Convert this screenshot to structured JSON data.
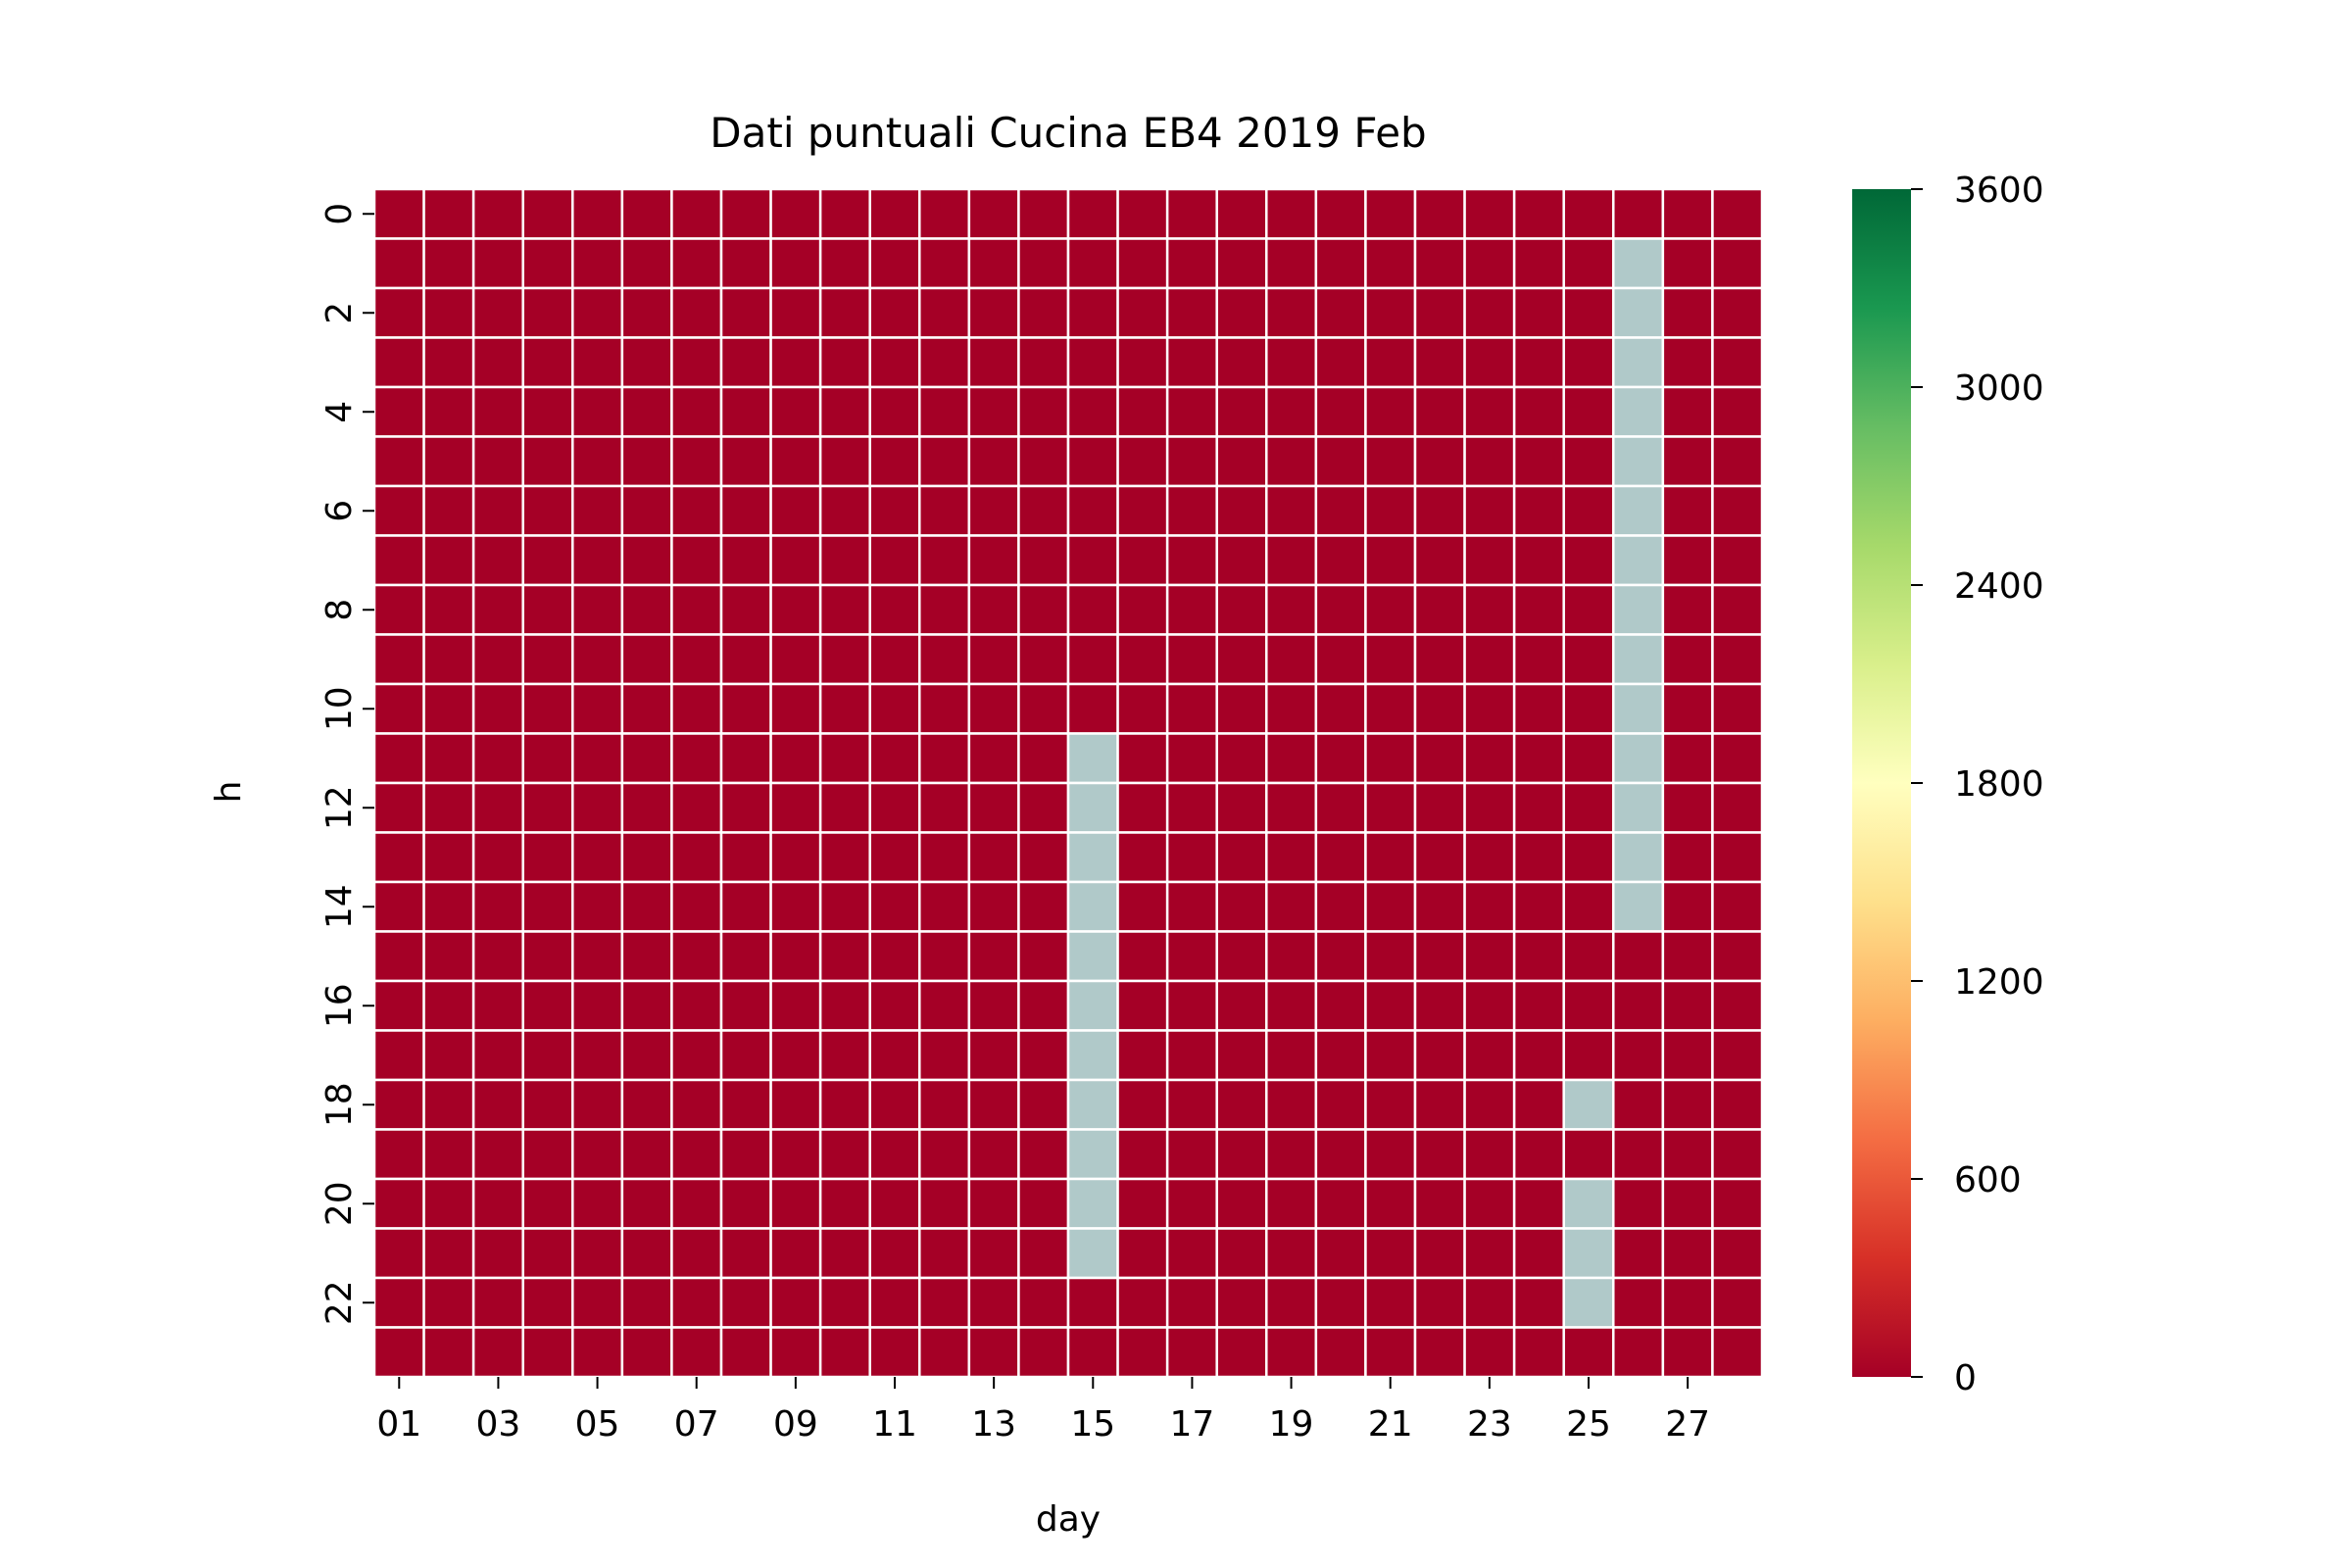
{
  "chart_data": {
    "type": "heatmap",
    "title": "Dati puntuali Cucina EB4 2019 Feb",
    "xlabel": "day",
    "ylabel": "h",
    "x_categories": [
      "01",
      "02",
      "03",
      "04",
      "05",
      "06",
      "07",
      "08",
      "09",
      "10",
      "11",
      "12",
      "13",
      "14",
      "15",
      "16",
      "17",
      "18",
      "19",
      "20",
      "21",
      "22",
      "23",
      "24",
      "25",
      "26",
      "27",
      "28"
    ],
    "y_categories": [
      "0",
      "1",
      "2",
      "3",
      "4",
      "5",
      "6",
      "7",
      "8",
      "9",
      "10",
      "11",
      "12",
      "13",
      "14",
      "15",
      "16",
      "17",
      "18",
      "19",
      "20",
      "21",
      "22",
      "23"
    ],
    "x_tick_labels": [
      "01",
      "03",
      "05",
      "07",
      "09",
      "11",
      "13",
      "15",
      "17",
      "19",
      "21",
      "23",
      "25",
      "27"
    ],
    "y_tick_labels": [
      "0",
      "2",
      "4",
      "6",
      "8",
      "10",
      "12",
      "14",
      "16",
      "18",
      "20",
      "22"
    ],
    "default_value": 0,
    "missing_cells_note": "",
    "missing_ranges": [
      {
        "day": "26",
        "hours": [
          1,
          14
        ]
      },
      {
        "day": "15",
        "hours": [
          11,
          21
        ]
      },
      {
        "day": "25",
        "hours": [
          18,
          18
        ]
      },
      {
        "day": "25",
        "hours": [
          20,
          22
        ]
      }
    ],
    "colorbar": {
      "colormap": "RdYlGn",
      "vmin": 0,
      "vmax": 3600,
      "ticks": [
        0,
        600,
        1200,
        1800,
        2400,
        3000,
        3600
      ],
      "tick_labels": [
        "0",
        "600",
        "1200",
        "1800",
        "2400",
        "3000",
        "3600"
      ]
    },
    "colors": {
      "zero": "#a50026",
      "missing": "#b0c9c9",
      "gridline": "#ffffff"
    },
    "grid": true
  }
}
